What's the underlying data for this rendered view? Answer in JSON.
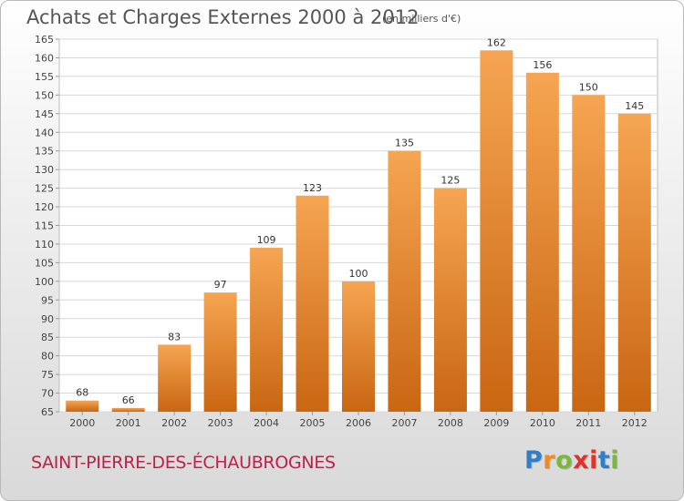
{
  "header": {
    "title": "Achats et Charges Externes 2000 à 2012",
    "unit": "(en milliers d'€)"
  },
  "footer": {
    "commune": "SAINT-PIERRE-DES-ÉCHAUBROGNES",
    "logo_letters": [
      "P",
      "r",
      "o",
      "x",
      "i",
      "t",
      "i"
    ]
  },
  "colors": {
    "bar_light": "#f6a552",
    "bar_dark": "#c96612",
    "title": "#555555",
    "commune": "#c11f48"
  },
  "chart_data": {
    "type": "bar",
    "title": "Achats et Charges Externes 2000 à 2012",
    "subtitle": "(en milliers d'€)",
    "categories": [
      "2000",
      "2001",
      "2002",
      "2003",
      "2004",
      "2005",
      "2006",
      "2007",
      "2008",
      "2009",
      "2010",
      "2011",
      "2012"
    ],
    "values": [
      68,
      66,
      83,
      97,
      109,
      123,
      100,
      135,
      125,
      162,
      156,
      150,
      145
    ],
    "ylim": [
      65,
      165
    ],
    "yticks": [
      65,
      70,
      75,
      80,
      85,
      90,
      95,
      100,
      105,
      110,
      115,
      120,
      125,
      130,
      135,
      140,
      145,
      150,
      155,
      160,
      165
    ],
    "grid": true,
    "data_labels": true
  }
}
